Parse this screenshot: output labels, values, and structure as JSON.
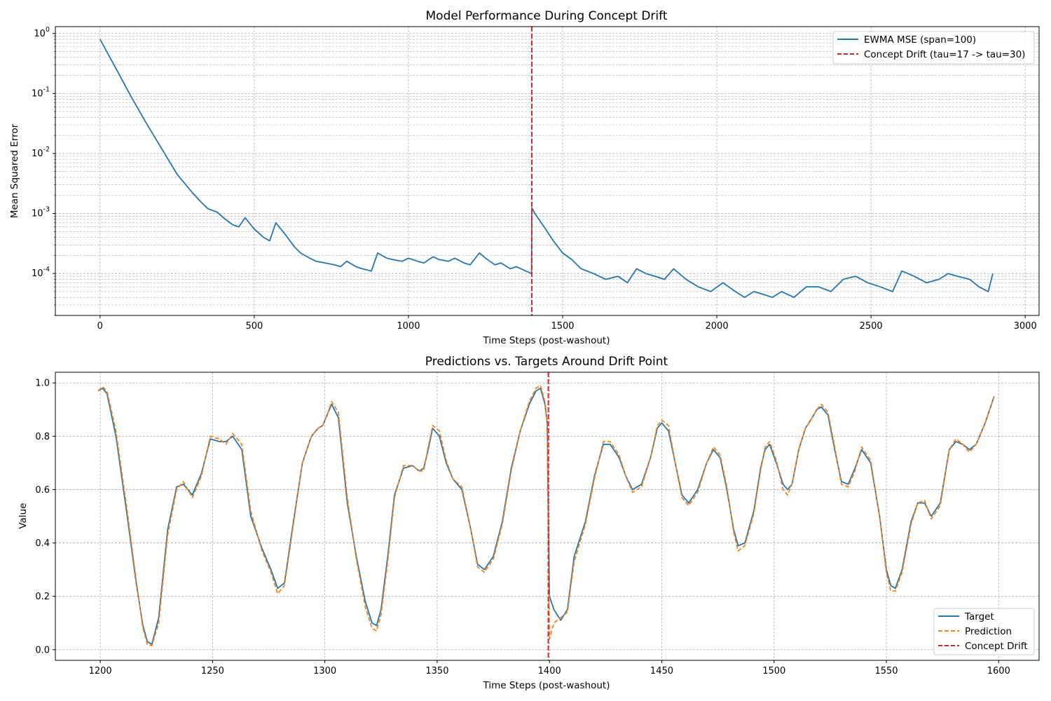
{
  "chart_data": [
    {
      "type": "line",
      "title": "Model Performance During Concept Drift",
      "xlabel": "Time Steps (post-washout)",
      "ylabel": "Mean Squared Error",
      "yscale": "log",
      "xlim": [
        -145,
        3045
      ],
      "ylim": [
        2e-05,
        1.3
      ],
      "xticks": [
        "0",
        "500",
        "1000",
        "1500",
        "2000",
        "2500",
        "3000"
      ],
      "yticks": [
        "10^0",
        "10^-1",
        "10^-2",
        "10^-3",
        "10^-4"
      ],
      "grid": true,
      "legend_position": "top-right",
      "series": [
        {
          "name": "EWMA MSE (span=100)",
          "color": "#1f77b4",
          "x": [
            0,
            50,
            100,
            150,
            200,
            250,
            300,
            330,
            350,
            380,
            400,
            430,
            450,
            470,
            500,
            530,
            550,
            570,
            600,
            630,
            650,
            680,
            700,
            730,
            760,
            780,
            800,
            830,
            850,
            880,
            900,
            930,
            950,
            980,
            1000,
            1030,
            1050,
            1080,
            1100,
            1130,
            1150,
            1180,
            1200,
            1230,
            1250,
            1280,
            1300,
            1330,
            1350,
            1380,
            1399,
            1400,
            1410,
            1440,
            1470,
            1500,
            1530,
            1560,
            1600,
            1640,
            1680,
            1710,
            1740,
            1770,
            1800,
            1830,
            1860,
            1900,
            1940,
            1980,
            2020,
            2060,
            2090,
            2120,
            2150,
            2180,
            2210,
            2250,
            2290,
            2330,
            2370,
            2410,
            2450,
            2490,
            2530,
            2570,
            2600,
            2640,
            2680,
            2720,
            2750,
            2780,
            2820,
            2850,
            2880,
            2895
          ],
          "y": [
            0.8,
            0.27,
            0.09,
            0.032,
            0.012,
            0.0045,
            0.0022,
            0.0015,
            0.0012,
            0.00105,
            0.00085,
            0.00065,
            0.0006,
            0.00085,
            0.00055,
            0.0004,
            0.00035,
            0.0007,
            0.00045,
            0.00028,
            0.00022,
            0.00018,
            0.00016,
            0.00015,
            0.00014,
            0.00013,
            0.00016,
            0.00013,
            0.00012,
            0.00011,
            0.00022,
            0.00018,
            0.00017,
            0.00016,
            0.00018,
            0.00016,
            0.00015,
            0.00019,
            0.00017,
            0.00016,
            0.00018,
            0.00015,
            0.00014,
            0.00022,
            0.00018,
            0.00014,
            0.00015,
            0.00012,
            0.00013,
            0.00011,
            0.0001,
            0.00125,
            0.001,
            0.0006,
            0.00035,
            0.00022,
            0.00017,
            0.00012,
            0.0001,
            8e-05,
            9e-05,
            7e-05,
            0.00012,
            0.0001,
            9e-05,
            8e-05,
            0.00012,
            8e-05,
            6e-05,
            5e-05,
            7e-05,
            5e-05,
            4e-05,
            5e-05,
            4.5e-05,
            4e-05,
            5e-05,
            4e-05,
            6e-05,
            6e-05,
            5e-05,
            8e-05,
            9e-05,
            7e-05,
            6e-05,
            5e-05,
            0.00011,
            9e-05,
            7e-05,
            8e-05,
            0.0001,
            9e-05,
            8e-05,
            6e-05,
            5e-05,
            0.0001
          ]
        }
      ],
      "markers": [
        {
          "name": "Concept Drift (tau=17 -> tau=30)",
          "x": 1400,
          "color": "#d62728",
          "style": "dashed"
        }
      ]
    },
    {
      "type": "line",
      "title": "Predictions vs. Targets Around Drift Point",
      "xlabel": "Time Steps (post-washout)",
      "ylabel": "Value",
      "xlim": [
        1180,
        1618
      ],
      "ylim": [
        -0.04,
        1.04
      ],
      "xticks": [
        "1200",
        "1250",
        "1300",
        "1350",
        "1400",
        "1450",
        "1500",
        "1550",
        "1600"
      ],
      "yticks": [
        "0.0",
        "0.2",
        "0.4",
        "0.6",
        "0.8",
        "1.0"
      ],
      "grid": true,
      "legend_position": "bottom-right",
      "series": [
        {
          "name": "Target",
          "color": "#1f77b4",
          "style": "solid",
          "x": [
            1199,
            1201,
            1203,
            1207,
            1212,
            1216,
            1219,
            1221,
            1223,
            1226,
            1230,
            1234,
            1237,
            1241,
            1245,
            1249,
            1253,
            1256,
            1259,
            1263,
            1267,
            1272,
            1276,
            1279,
            1282,
            1286,
            1290,
            1294,
            1297,
            1299,
            1301,
            1303,
            1306,
            1310,
            1314,
            1318,
            1321,
            1323,
            1325,
            1328,
            1331,
            1335,
            1339,
            1342,
            1344,
            1346,
            1348,
            1351,
            1354,
            1357,
            1361,
            1365,
            1368,
            1371,
            1375,
            1379,
            1383,
            1387,
            1391,
            1394,
            1396,
            1398,
            1399,
            1400,
            1402,
            1405,
            1408,
            1411,
            1416,
            1420,
            1424,
            1427,
            1431,
            1434,
            1437,
            1441,
            1445,
            1448,
            1450,
            1453,
            1456,
            1459,
            1462,
            1466,
            1470,
            1473,
            1476,
            1479,
            1482,
            1484,
            1487,
            1491,
            1494,
            1496,
            1498,
            1501,
            1504,
            1506,
            1508,
            1511,
            1514,
            1517,
            1519,
            1521,
            1524,
            1527,
            1530,
            1533,
            1536,
            1539,
            1543,
            1547,
            1550,
            1552,
            1554,
            1557,
            1561,
            1564,
            1567,
            1570,
            1574,
            1578,
            1581,
            1584,
            1587,
            1590,
            1594,
            1598
          ],
          "y": [
            0.97,
            0.98,
            0.96,
            0.8,
            0.5,
            0.25,
            0.09,
            0.03,
            0.02,
            0.12,
            0.45,
            0.61,
            0.62,
            0.58,
            0.66,
            0.79,
            0.78,
            0.78,
            0.8,
            0.75,
            0.5,
            0.38,
            0.3,
            0.23,
            0.25,
            0.48,
            0.7,
            0.8,
            0.83,
            0.84,
            0.88,
            0.92,
            0.87,
            0.55,
            0.35,
            0.18,
            0.1,
            0.09,
            0.15,
            0.35,
            0.58,
            0.68,
            0.69,
            0.67,
            0.68,
            0.75,
            0.83,
            0.8,
            0.7,
            0.64,
            0.6,
            0.45,
            0.32,
            0.3,
            0.35,
            0.48,
            0.68,
            0.82,
            0.92,
            0.97,
            0.98,
            0.92,
            0.85,
            0.2,
            0.15,
            0.11,
            0.15,
            0.35,
            0.48,
            0.65,
            0.77,
            0.77,
            0.72,
            0.65,
            0.6,
            0.62,
            0.72,
            0.83,
            0.85,
            0.82,
            0.7,
            0.58,
            0.55,
            0.6,
            0.7,
            0.75,
            0.72,
            0.6,
            0.45,
            0.39,
            0.4,
            0.52,
            0.68,
            0.75,
            0.77,
            0.7,
            0.62,
            0.6,
            0.62,
            0.75,
            0.83,
            0.87,
            0.9,
            0.91,
            0.88,
            0.75,
            0.63,
            0.62,
            0.68,
            0.75,
            0.7,
            0.5,
            0.3,
            0.24,
            0.23,
            0.3,
            0.48,
            0.55,
            0.55,
            0.5,
            0.55,
            0.75,
            0.78,
            0.77,
            0.75,
            0.77,
            0.85,
            0.95
          ]
        },
        {
          "name": "Prediction",
          "color": "#ff7f0e",
          "style": "dashed",
          "x": [
            1199,
            1201,
            1203,
            1207,
            1212,
            1216,
            1219,
            1221,
            1223,
            1226,
            1230,
            1234,
            1237,
            1241,
            1245,
            1249,
            1253,
            1256,
            1259,
            1263,
            1267,
            1272,
            1276,
            1279,
            1282,
            1286,
            1290,
            1294,
            1297,
            1299,
            1301,
            1303,
            1306,
            1310,
            1314,
            1318,
            1321,
            1323,
            1325,
            1328,
            1331,
            1335,
            1339,
            1342,
            1344,
            1346,
            1348,
            1351,
            1354,
            1357,
            1361,
            1365,
            1368,
            1371,
            1375,
            1379,
            1383,
            1387,
            1391,
            1394,
            1396,
            1398,
            1399,
            1400,
            1402,
            1405,
            1408,
            1411,
            1416,
            1420,
            1424,
            1427,
            1431,
            1434,
            1437,
            1441,
            1445,
            1448,
            1450,
            1453,
            1456,
            1459,
            1462,
            1466,
            1470,
            1473,
            1476,
            1479,
            1482,
            1484,
            1487,
            1491,
            1494,
            1496,
            1498,
            1501,
            1504,
            1506,
            1508,
            1511,
            1514,
            1517,
            1519,
            1521,
            1524,
            1527,
            1530,
            1533,
            1536,
            1539,
            1543,
            1547,
            1550,
            1552,
            1554,
            1557,
            1561,
            1564,
            1567,
            1570,
            1574,
            1578,
            1581,
            1584,
            1587,
            1590,
            1594,
            1598
          ],
          "y": [
            0.97,
            0.985,
            0.97,
            0.82,
            0.52,
            0.26,
            0.08,
            0.02,
            0.015,
            0.1,
            0.43,
            0.6,
            0.63,
            0.57,
            0.65,
            0.8,
            0.79,
            0.77,
            0.81,
            0.77,
            0.52,
            0.37,
            0.29,
            0.21,
            0.24,
            0.47,
            0.7,
            0.8,
            0.83,
            0.84,
            0.88,
            0.93,
            0.89,
            0.57,
            0.34,
            0.16,
            0.08,
            0.07,
            0.13,
            0.33,
            0.57,
            0.69,
            0.69,
            0.67,
            0.67,
            0.76,
            0.84,
            0.82,
            0.71,
            0.64,
            0.61,
            0.45,
            0.31,
            0.29,
            0.34,
            0.47,
            0.67,
            0.82,
            0.93,
            0.98,
            0.99,
            0.93,
            0.85,
            0.04,
            0.1,
            0.12,
            0.14,
            0.33,
            0.47,
            0.64,
            0.78,
            0.78,
            0.73,
            0.65,
            0.59,
            0.61,
            0.72,
            0.84,
            0.86,
            0.84,
            0.7,
            0.57,
            0.54,
            0.59,
            0.7,
            0.76,
            0.73,
            0.61,
            0.44,
            0.37,
            0.39,
            0.51,
            0.67,
            0.76,
            0.78,
            0.71,
            0.6,
            0.58,
            0.62,
            0.75,
            0.83,
            0.87,
            0.9,
            0.92,
            0.89,
            0.76,
            0.62,
            0.61,
            0.67,
            0.76,
            0.71,
            0.5,
            0.29,
            0.22,
            0.22,
            0.29,
            0.47,
            0.55,
            0.56,
            0.49,
            0.54,
            0.75,
            0.79,
            0.77,
            0.74,
            0.77,
            0.85,
            0.95
          ]
        }
      ],
      "markers": [
        {
          "name": "Concept Drift",
          "x": 1399.5,
          "color": "#d62728",
          "style": "dashed"
        }
      ]
    }
  ]
}
